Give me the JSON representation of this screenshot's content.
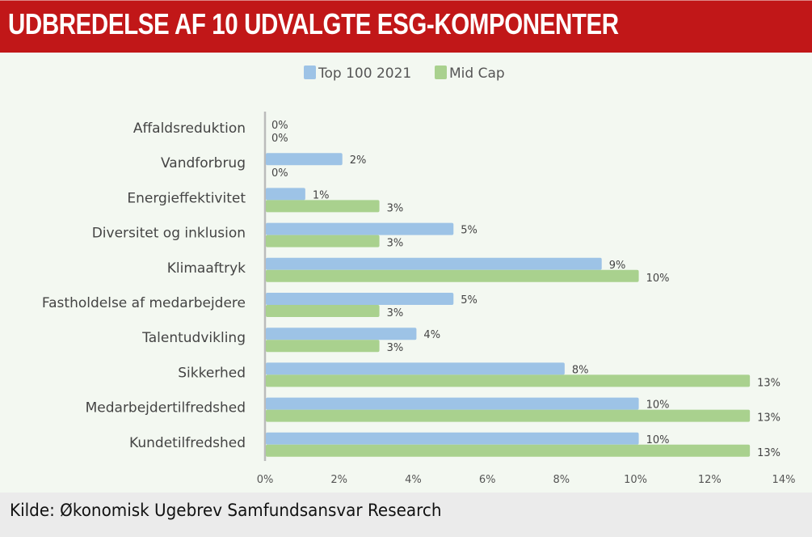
{
  "header": {
    "title": "UDBREDELSE AF 10 UDVALGTE ESG-KOMPONENTER"
  },
  "footer": {
    "source": "Kilde: Økonomisk Ugebrev Samfundsansvar Research"
  },
  "chart_data": {
    "type": "bar",
    "orientation": "horizontal",
    "title": "UDBREDELSE AF 10 UDVALGTE ESG-KOMPONENTER",
    "categories": [
      "Affaldsreduktion",
      "Vandforbrug",
      "Energieffektivitet",
      "Diversitet og inklusion",
      "Klimaaftryk",
      "Fastholdelse af medarbejdere",
      "Talentudvikling",
      "Sikkerhed",
      "Medarbejdertilfredshed",
      "Kundetilfredshed"
    ],
    "series": [
      {
        "name": "Top 100 2021",
        "color": "#9dc3e6",
        "values": [
          0,
          2,
          1,
          5,
          9,
          5,
          4,
          8,
          10,
          10
        ]
      },
      {
        "name": "Mid Cap",
        "color": "#a9d18e",
        "values": [
          0,
          0,
          3,
          3,
          10,
          3,
          3,
          13,
          13,
          13
        ]
      }
    ],
    "value_format": "%",
    "xlim": [
      0,
      14
    ],
    "xticks": [
      "0%",
      "2%",
      "4%",
      "6%",
      "8%",
      "10%",
      "12%",
      "14%"
    ],
    "grid": false,
    "legend": "top",
    "xlabel": "",
    "ylabel": ""
  }
}
